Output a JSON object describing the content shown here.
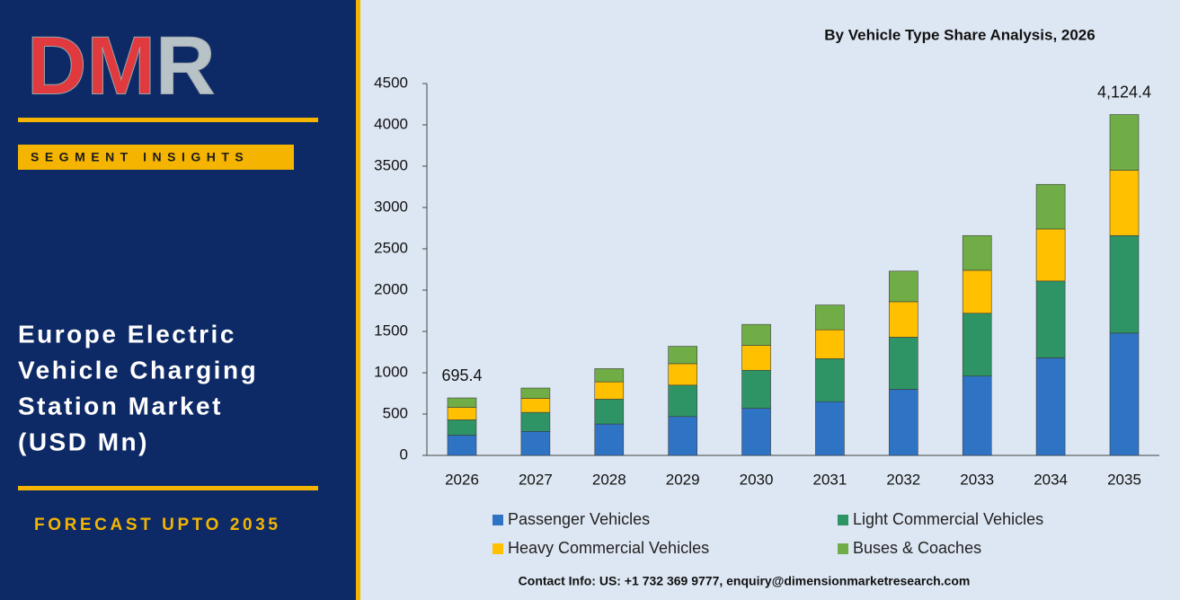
{
  "sidebar": {
    "logo": "DMR",
    "badge": "SEGMENT INSIGHTS",
    "title_lines": [
      "Europe Electric",
      "Vehicle Charging",
      "Station Market",
      "(USD Mn)"
    ],
    "forecast": "FORECAST UPTO 2035"
  },
  "chart_data": {
    "type": "stacked_bar",
    "title": "By Vehicle Type Share Analysis, 2026",
    "categories": [
      "2026",
      "2027",
      "2028",
      "2029",
      "2030",
      "2031",
      "2032",
      "2033",
      "2034",
      "2035"
    ],
    "series": [
      {
        "name": "Passenger Vehicles",
        "color": "#2f74c4",
        "values": [
          245,
          290,
          380,
          470,
          570,
          650,
          800,
          960,
          1180,
          1480
        ]
      },
      {
        "name": "Light Commercial Vehicles",
        "color": "#2e9466",
        "values": [
          185,
          230,
          300,
          380,
          460,
          520,
          630,
          760,
          930,
          1180
        ]
      },
      {
        "name": "Heavy Commercial Vehicles",
        "color": "#ffc000",
        "values": [
          150,
          170,
          210,
          260,
          300,
          350,
          430,
          520,
          630,
          790
        ]
      },
      {
        "name": "Buses & Coaches",
        "color": "#70ad47",
        "values": [
          115.4,
          125,
          160,
          210,
          255,
          300,
          370,
          420,
          540,
          674.4
        ]
      }
    ],
    "annotations": [
      {
        "category": "2026",
        "value": 695.4,
        "label": "695.4"
      },
      {
        "category": "2035",
        "value": 4124.4,
        "label": "4,124.4"
      }
    ],
    "ylim": [
      0,
      4500
    ],
    "yticks": [
      0,
      500,
      1000,
      1500,
      2000,
      2500,
      3000,
      3500,
      4000,
      4500
    ],
    "grid": false
  },
  "footer": {
    "contact": "Contact Info: US: +1 732 369 9777, enquiry@dimensionmarketresearch.com"
  }
}
